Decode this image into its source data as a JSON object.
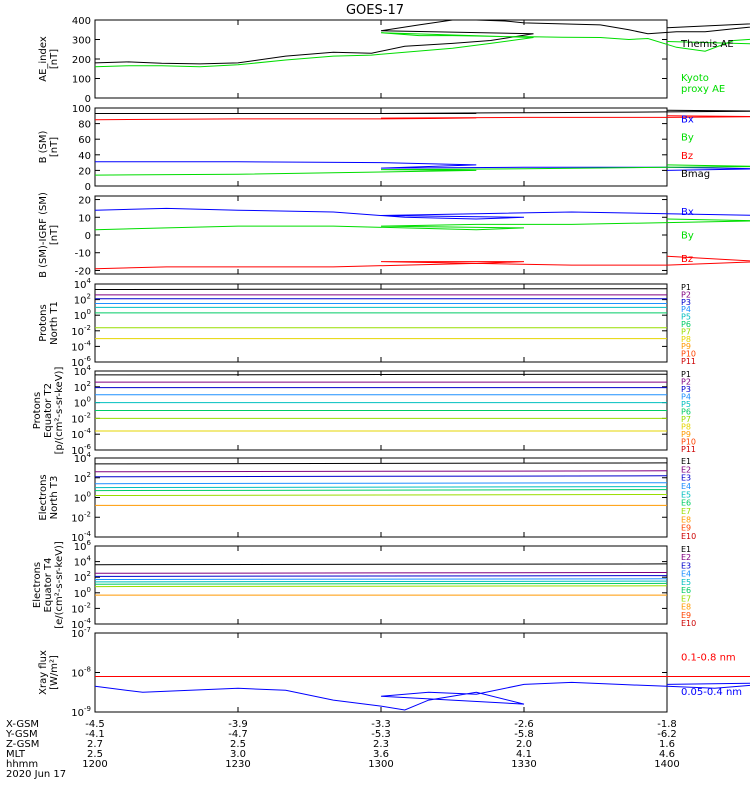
{
  "title": "GOES-17",
  "date_label": "2020 Jun 17",
  "colors": {
    "black": "#000000",
    "green": "#00dd00",
    "blue": "#0000ff",
    "red": "#ff0000"
  },
  "chart_data": [
    {
      "type": "line",
      "ylabel": "AE_index\n[nT]",
      "ylim": [
        0,
        400
      ],
      "yticks": [
        0,
        100,
        200,
        300,
        400
      ],
      "ytick_labels": [
        "0",
        "100",
        "200",
        "300",
        "400"
      ],
      "scale": "linear",
      "x": [
        1200,
        1207,
        1214,
        1222,
        1230,
        1240,
        1250,
        1258,
        1265,
        1275,
        1283,
        1292,
        1300,
        1308,
        1315,
        1320,
        1326,
        1330,
        1338,
        1346,
        1352,
        1356,
        1362,
        1368,
        1374,
        1380,
        1390,
        1400
      ],
      "series": [
        {
          "name": "Themis AE",
          "color": "#000000",
          "values": [
            180,
            185,
            178,
            175,
            180,
            215,
            235,
            230,
            265,
            280,
            295,
            330,
            345,
            375,
            400,
            405,
            395,
            385,
            380,
            375,
            350,
            330,
            340,
            340,
            355,
            370,
            395,
            360
          ]
        },
        {
          "name": "Kyoto\nproxy AE",
          "color": "#00dd00",
          "values": [
            160,
            165,
            165,
            160,
            170,
            195,
            215,
            220,
            235,
            255,
            280,
            310,
            335,
            320,
            320,
            318,
            315,
            315,
            312,
            310,
            300,
            305,
            260,
            240,
            295,
            305,
            270,
            290
          ]
        }
      ]
    },
    {
      "type": "line",
      "ylabel": "B (SM)\n[nT]",
      "ylim": [
        0,
        100
      ],
      "yticks": [
        0,
        20,
        40,
        60,
        80,
        100
      ],
      "ytick_labels": [
        "0",
        "20",
        "40",
        "60",
        "80",
        "100"
      ],
      "scale": "linear",
      "x": [
        1200,
        1230,
        1260,
        1280,
        1300,
        1330,
        1360,
        1380,
        1400
      ],
      "series": [
        {
          "name": "Bx",
          "color": "#0000ff",
          "values": [
            31,
            31,
            30,
            27,
            23,
            24,
            24,
            22,
            20
          ]
        },
        {
          "name": "By",
          "color": "#00dd00",
          "values": [
            14,
            15,
            18,
            20,
            21,
            22,
            24,
            25,
            27
          ]
        },
        {
          "name": "Bz",
          "color": "#ff0000",
          "values": [
            85,
            86,
            86,
            87,
            87,
            88,
            88,
            89,
            90
          ]
        },
        {
          "name": "Bmag",
          "color": "#000000",
          "values": [
            93,
            93,
            93,
            93,
            93,
            94,
            95,
            96,
            97
          ]
        }
      ]
    },
    {
      "type": "line",
      "ylabel": "B (SM)-IGRF (SM)\n[nT]",
      "ylim": [
        -22,
        22
      ],
      "yticks": [
        -20,
        -10,
        0,
        10,
        20
      ],
      "ytick_labels": [
        "-20",
        "-10",
        "0",
        "10",
        "20"
      ],
      "scale": "linear",
      "x": [
        1200,
        1215,
        1230,
        1250,
        1265,
        1280,
        1290,
        1300,
        1320,
        1340,
        1360,
        1380,
        1400
      ],
      "series": [
        {
          "name": "Bx",
          "color": "#0000ff",
          "values": [
            14,
            15,
            14,
            13,
            10,
            9,
            10,
            11,
            12,
            13,
            12,
            11,
            12
          ]
        },
        {
          "name": "By",
          "color": "#00dd00",
          "values": [
            3,
            4,
            5,
            5,
            4,
            3,
            4,
            5,
            6,
            6,
            7,
            8,
            9
          ]
        },
        {
          "name": "Bz",
          "color": "#ff0000",
          "values": [
            -19,
            -18,
            -18,
            -18,
            -17,
            -16,
            -15,
            -15,
            -16,
            -17,
            -17,
            -15,
            -12
          ]
        }
      ]
    },
    {
      "type": "line",
      "ylabel": "Protons\nNorth T1",
      "scale": "log",
      "ylim_exp": [
        -6,
        4
      ],
      "yticks_exp": [
        -6,
        -4,
        -2,
        0,
        2,
        4
      ],
      "x": [
        1200,
        1400
      ],
      "series": [
        {
          "name": "P1",
          "color": "#000000",
          "values_exp": [
            3.3,
            3.4
          ]
        },
        {
          "name": "P2",
          "color": "#800080",
          "values_exp": [
            2.6,
            2.6
          ]
        },
        {
          "name": "P3",
          "color": "#0000cc",
          "values_exp": [
            2.1,
            2.1
          ]
        },
        {
          "name": "P4",
          "color": "#1e90ff",
          "values_exp": [
            1.5,
            1.5
          ]
        },
        {
          "name": "P5",
          "color": "#00bfbf",
          "values_exp": [
            1.0,
            1.0
          ]
        },
        {
          "name": "P6",
          "color": "#00cc66",
          "values_exp": [
            0.3,
            0.3
          ]
        },
        {
          "name": "P7",
          "color": "#99dd00",
          "values_exp": [
            -1.6,
            -1.6
          ]
        },
        {
          "name": "P8",
          "color": "#e5d500",
          "values_exp": [
            -3.0,
            -3.0
          ]
        },
        {
          "name": "P9",
          "color": "#ff9900",
          "values_exp": []
        },
        {
          "name": "P10",
          "color": "#ff4400",
          "values_exp": []
        },
        {
          "name": "P11",
          "color": "#cc0000",
          "values_exp": []
        }
      ]
    },
    {
      "type": "line",
      "ylabel": "Protons\nEquator T2\n[p/(cm²-s-sr-keV)]",
      "scale": "log",
      "ylim_exp": [
        -6,
        4
      ],
      "yticks_exp": [
        -6,
        -4,
        -2,
        0,
        2,
        4
      ],
      "x": [
        1200,
        1400
      ],
      "series": [
        {
          "name": "P1",
          "color": "#000000",
          "values_exp": [
            3.5,
            3.6
          ]
        },
        {
          "name": "P2",
          "color": "#800080",
          "values_exp": [
            2.6,
            2.6
          ]
        },
        {
          "name": "P3",
          "color": "#0000cc",
          "values_exp": [
            1.9,
            1.9
          ]
        },
        {
          "name": "P4",
          "color": "#1e90ff",
          "values_exp": [
            1.0,
            1.0
          ]
        },
        {
          "name": "P5",
          "color": "#00bfbf",
          "values_exp": [
            0.0,
            0.0
          ]
        },
        {
          "name": "P6",
          "color": "#00cc66",
          "values_exp": [
            -1.0,
            -1.0
          ]
        },
        {
          "name": "P7",
          "color": "#99dd00",
          "values_exp": [
            -2.0,
            -2.0
          ]
        },
        {
          "name": "P8",
          "color": "#e5d500",
          "values_exp": [
            -3.6,
            -3.6
          ]
        },
        {
          "name": "P9",
          "color": "#ff9900",
          "values_exp": []
        },
        {
          "name": "P10",
          "color": "#ff4400",
          "values_exp": []
        },
        {
          "name": "P11",
          "color": "#cc0000",
          "values_exp": []
        }
      ]
    },
    {
      "type": "line",
      "ylabel": "Electrons\nNorth T3",
      "scale": "log",
      "ylim_exp": [
        -4,
        4
      ],
      "yticks_exp": [
        -4,
        -2,
        0,
        2,
        4
      ],
      "x": [
        1200,
        1400
      ],
      "series": [
        {
          "name": "E1",
          "color": "#000000",
          "values_exp": [
            3.4,
            3.5
          ]
        },
        {
          "name": "E2",
          "color": "#800080",
          "values_exp": [
            2.6,
            2.7
          ]
        },
        {
          "name": "E3",
          "color": "#0000cc",
          "values_exp": [
            2.1,
            2.2
          ]
        },
        {
          "name": "E4",
          "color": "#1e90ff",
          "values_exp": [
            1.4,
            1.5
          ]
        },
        {
          "name": "E5",
          "color": "#00bfbf",
          "values_exp": [
            1.0,
            1.1
          ]
        },
        {
          "name": "E6",
          "color": "#00cc66",
          "values_exp": [
            0.7,
            0.8
          ]
        },
        {
          "name": "E7",
          "color": "#99dd00",
          "values_exp": [
            0.2,
            0.3
          ]
        },
        {
          "name": "E8",
          "color": "#ff9900",
          "values_exp": [
            -0.8,
            -0.8
          ]
        },
        {
          "name": "E9",
          "color": "#ff4400",
          "values_exp": []
        },
        {
          "name": "E10",
          "color": "#cc0000",
          "values_exp": []
        }
      ]
    },
    {
      "type": "line",
      "ylabel": "Electrons\nEquator T4\n[e/(cm²-s-sr-keV)]",
      "scale": "log",
      "ylim_exp": [
        -4,
        6
      ],
      "yticks_exp": [
        -4,
        -2,
        0,
        2,
        4,
        6
      ],
      "x": [
        1200,
        1400
      ],
      "series": [
        {
          "name": "E1",
          "color": "#000000",
          "values_exp": [
            3.6,
            3.7
          ]
        },
        {
          "name": "E2",
          "color": "#800080",
          "values_exp": [
            2.5,
            2.6
          ]
        },
        {
          "name": "E3",
          "color": "#0000cc",
          "values_exp": [
            2.1,
            2.2
          ]
        },
        {
          "name": "E4",
          "color": "#1e90ff",
          "values_exp": [
            1.7,
            1.8
          ]
        },
        {
          "name": "E5",
          "color": "#00bfbf",
          "values_exp": [
            1.4,
            1.5
          ]
        },
        {
          "name": "E6",
          "color": "#00cc66",
          "values_exp": [
            1.1,
            1.2
          ]
        },
        {
          "name": "E7",
          "color": "#99dd00",
          "values_exp": [
            0.8,
            0.9
          ]
        },
        {
          "name": "E8",
          "color": "#ff9900",
          "values_exp": [
            -0.3,
            -0.3
          ]
        },
        {
          "name": "E9",
          "color": "#ff4400",
          "values_exp": []
        },
        {
          "name": "E10",
          "color": "#cc0000",
          "values_exp": []
        }
      ]
    },
    {
      "type": "line",
      "ylabel": "Xray flux\n[W/m²]",
      "scale": "log",
      "ylim_exp": [
        -9,
        -7
      ],
      "yticks_exp": [
        -9,
        -8,
        -7
      ],
      "x": [
        1200,
        1210,
        1220,
        1230,
        1240,
        1250,
        1260,
        1265,
        1270,
        1280,
        1290,
        1300,
        1310,
        1320,
        1330,
        1340,
        1350,
        1360,
        1370,
        1380,
        1390,
        1400
      ],
      "series": [
        {
          "name": "0.1-0.8 nm",
          "color": "#ff0000",
          "values_exp": [
            -8.1,
            -8.1,
            -8.1,
            -8.1,
            -8.1,
            -8.1,
            -8.1,
            -8.1,
            -8.1,
            -8.1,
            -8.1,
            -8.1,
            -8.1,
            -8.1,
            -8.1,
            -8.1,
            -8.1,
            -8.1,
            -8.1,
            -8.1,
            -8.1,
            -8.1
          ]
        },
        {
          "name": "0.05-0.4 nm",
          "color": "#0000ff",
          "values_exp": [
            -8.35,
            -8.5,
            -8.45,
            -8.4,
            -8.45,
            -8.7,
            -8.85,
            -8.95,
            -8.7,
            -8.5,
            -8.8,
            -8.6,
            -8.5,
            -8.55,
            -8.3,
            -8.25,
            -8.3,
            -8.35,
            -8.4,
            -8.3,
            -8.25,
            -8.3
          ]
        }
      ]
    }
  ],
  "x_axis": {
    "tick_x": [
      1200,
      1230,
      1300,
      1330,
      1400
    ],
    "rows": [
      {
        "label": "X-GSM",
        "values": [
          "-4.5",
          "-3.9",
          "-3.3",
          "-2.6",
          "-1.8"
        ]
      },
      {
        "label": "Y-GSM",
        "values": [
          "-4.1",
          "-4.7",
          "-5.3",
          "-5.8",
          "-6.2"
        ]
      },
      {
        "label": "Z-GSM",
        "values": [
          "2.7",
          "2.5",
          "2.3",
          "2.0",
          "1.6"
        ]
      },
      {
        "label": "MLT",
        "values": [
          "2.5",
          "3.0",
          "3.6",
          "4.1",
          "4.6"
        ]
      },
      {
        "label": "hhmm",
        "values": [
          "1200",
          "1230",
          "1300",
          "1330",
          "1400"
        ]
      }
    ]
  }
}
